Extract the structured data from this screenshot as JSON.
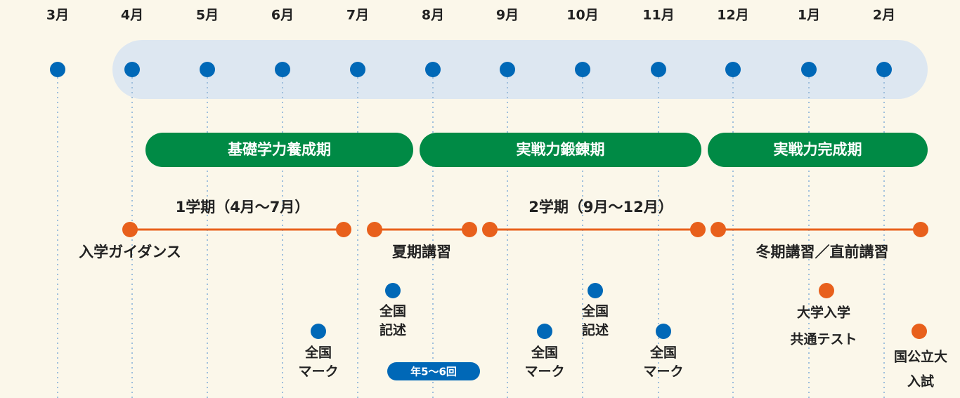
{
  "months": [
    "3月",
    "4月",
    "5月",
    "6月",
    "7月",
    "8月",
    "9月",
    "10月",
    "11月",
    "12月",
    "1月",
    "2月"
  ],
  "phases": [
    "基礎学力養成期",
    "実戦力鍛錬期",
    "実戦力完成期"
  ],
  "terms": [
    "1学期（4月〜7月）",
    "入学ガイダンス",
    "夏期講習",
    "2学期（9月〜12月）",
    "冬期講習／直前講習"
  ],
  "events": [
    {
      "lines": [
        "全国",
        "マーク"
      ]
    },
    {
      "lines": [
        "全国",
        "記述"
      ]
    },
    {
      "lines": [
        "全国",
        "マーク"
      ]
    },
    {
      "lines": [
        "全国",
        "記述"
      ]
    },
    {
      "lines": [
        "全国",
        "マーク"
      ]
    },
    {
      "lines": [
        "大学入学",
        "共通テスト"
      ]
    },
    {
      "lines": [
        "国公立大",
        "入試"
      ]
    }
  ],
  "badge": "年5〜6回"
}
